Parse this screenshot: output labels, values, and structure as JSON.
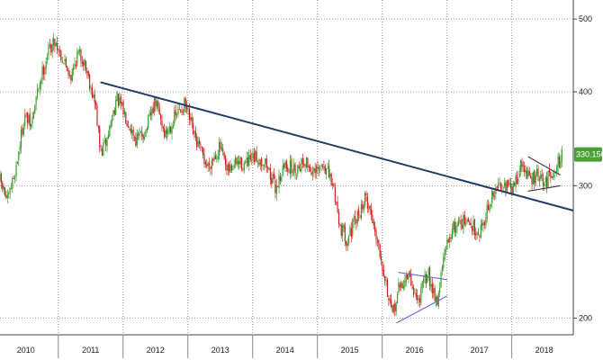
{
  "colors": {
    "up": "#3c9a2c",
    "down": "#c8231f",
    "trendline": "#1f3d66",
    "pattern": "#6b6bd6",
    "grid": "#9a9a9a",
    "badge": "#4ca035"
  },
  "chart_data": {
    "type": "candlestick",
    "title": "",
    "xlabel": "",
    "ylabel": "",
    "ylim": [
      190,
      530
    ],
    "xlim": [
      2009.6,
      2018.45
    ],
    "y_ticks": [
      "200",
      "300",
      "400",
      "500"
    ],
    "x_ticks": [
      "2010",
      "2011",
      "2012",
      "2013",
      "2014",
      "2015",
      "2016",
      "2017",
      "2018"
    ],
    "grid": "horizontal dotted at y ticks, vertical dotted at year boundaries",
    "last_price_label": "330.1500",
    "close_path": [
      [
        2009.6,
        305
      ],
      [
        2009.72,
        285
      ],
      [
        2009.85,
        318
      ],
      [
        2009.98,
        372
      ],
      [
        2010.08,
        360
      ],
      [
        2010.2,
        408
      ],
      [
        2010.35,
        455
      ],
      [
        2010.45,
        468
      ],
      [
        2010.58,
        440
      ],
      [
        2010.7,
        420
      ],
      [
        2010.8,
        450
      ],
      [
        2010.9,
        440
      ],
      [
        2011.0,
        408
      ],
      [
        2011.08,
        380
      ],
      [
        2011.15,
        330
      ],
      [
        2011.25,
        345
      ],
      [
        2011.4,
        392
      ],
      [
        2011.55,
        370
      ],
      [
        2011.7,
        345
      ],
      [
        2011.85,
        355
      ],
      [
        2012.0,
        388
      ],
      [
        2012.15,
        350
      ],
      [
        2012.3,
        370
      ],
      [
        2012.45,
        385
      ],
      [
        2012.6,
        348
      ],
      [
        2012.8,
        318
      ],
      [
        2013.0,
        338
      ],
      [
        2013.1,
        312
      ],
      [
        2013.25,
        322
      ],
      [
        2013.4,
        320
      ],
      [
        2013.55,
        327
      ],
      [
        2013.7,
        322
      ],
      [
        2013.85,
        298
      ],
      [
        2014.0,
        320
      ],
      [
        2014.15,
        315
      ],
      [
        2014.3,
        325
      ],
      [
        2014.45,
        310
      ],
      [
        2014.6,
        320
      ],
      [
        2014.75,
        298
      ],
      [
        2014.85,
        265
      ],
      [
        2014.95,
        255
      ],
      [
        2015.1,
        270
      ],
      [
        2015.25,
        290
      ],
      [
        2015.35,
        270
      ],
      [
        2015.45,
        250
      ],
      [
        2015.55,
        225
      ],
      [
        2015.65,
        200
      ],
      [
        2015.75,
        218
      ],
      [
        2015.9,
        228
      ],
      [
        2016.05,
        210
      ],
      [
        2016.2,
        230
      ],
      [
        2016.35,
        210
      ],
      [
        2016.45,
        240
      ],
      [
        2016.55,
        260
      ],
      [
        2016.7,
        270
      ],
      [
        2016.9,
        265
      ],
      [
        2017.0,
        260
      ],
      [
        2017.1,
        275
      ],
      [
        2017.2,
        290
      ],
      [
        2017.35,
        305
      ],
      [
        2017.5,
        295
      ],
      [
        2017.65,
        320
      ],
      [
        2017.8,
        305
      ],
      [
        2017.9,
        310
      ],
      [
        2018.0,
        300
      ],
      [
        2018.1,
        312
      ],
      [
        2018.18,
        318
      ],
      [
        2018.28,
        330
      ]
    ],
    "annotations": [
      {
        "name": "long-term-resistance-trendline",
        "from": [
          2011.15,
          412
        ],
        "to": [
          2018.45,
          278
        ]
      },
      {
        "name": "flag-upper-line",
        "from": [
          2015.75,
          230
        ],
        "to": [
          2016.5,
          225
        ]
      },
      {
        "name": "flag-lower-line",
        "from": [
          2015.72,
          197
        ],
        "to": [
          2016.5,
          214
        ]
      },
      {
        "name": "wedge-upper-line",
        "from": [
          2017.75,
          328
        ],
        "to": [
          2018.25,
          310
        ]
      },
      {
        "name": "wedge-lower-line",
        "from": [
          2017.75,
          295
        ],
        "to": [
          2018.25,
          300
        ]
      }
    ]
  }
}
